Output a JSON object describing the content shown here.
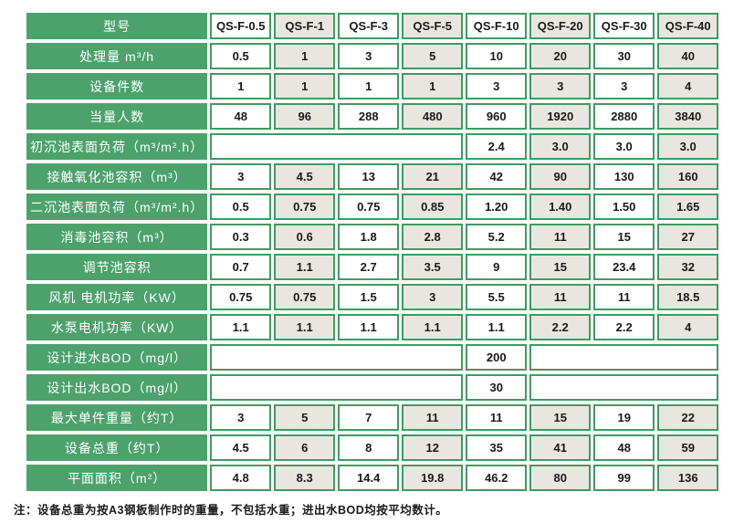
{
  "colors": {
    "label_green": "#4CA26B",
    "border_green": "#3F9B62",
    "alt_cell_gray": "#E8E6DF",
    "cell_white": "#FFFFFF",
    "label_text": "#FFFFFF",
    "data_text": "#1A1A1A"
  },
  "table": {
    "header": {
      "label": "型号",
      "models": [
        "QS-F-0.5",
        "QS-F-1",
        "QS-F-3",
        "QS-F-5",
        "QS-F-10",
        "QS-F-20",
        "QS-F-30",
        "QS-F-40"
      ]
    },
    "rows": [
      {
        "label": "处理量 m³/h",
        "cells": [
          {
            "v": "0.5"
          },
          {
            "v": "1"
          },
          {
            "v": "3"
          },
          {
            "v": "5"
          },
          {
            "v": "10"
          },
          {
            "v": "20"
          },
          {
            "v": "30"
          },
          {
            "v": "40"
          }
        ]
      },
      {
        "label": "设备件数",
        "cells": [
          {
            "v": "1"
          },
          {
            "v": "1"
          },
          {
            "v": "1"
          },
          {
            "v": "1"
          },
          {
            "v": "3"
          },
          {
            "v": "3"
          },
          {
            "v": "3"
          },
          {
            "v": "4"
          }
        ]
      },
      {
        "label": "当量人数",
        "cells": [
          {
            "v": "48"
          },
          {
            "v": "96"
          },
          {
            "v": "288"
          },
          {
            "v": "480"
          },
          {
            "v": "960"
          },
          {
            "v": "1920"
          },
          {
            "v": "2880"
          },
          {
            "v": "3840"
          }
        ]
      },
      {
        "label": "初沉池表面负荷（m³/m².h）",
        "cells": [
          {
            "v": "",
            "span": 4
          },
          {
            "v": "2.4"
          },
          {
            "v": "3.0"
          },
          {
            "v": "3.0"
          },
          {
            "v": "3.0"
          }
        ]
      },
      {
        "label": "接触氧化池容积（m³）",
        "cells": [
          {
            "v": "3"
          },
          {
            "v": "4.5"
          },
          {
            "v": "13"
          },
          {
            "v": "21"
          },
          {
            "v": "42"
          },
          {
            "v": "90"
          },
          {
            "v": "130"
          },
          {
            "v": "160"
          }
        ]
      },
      {
        "label": "二沉池表面负荷（m³/m².h）",
        "cells": [
          {
            "v": "0.5"
          },
          {
            "v": "0.75"
          },
          {
            "v": "0.75"
          },
          {
            "v": "0.85"
          },
          {
            "v": "1.20"
          },
          {
            "v": "1.40"
          },
          {
            "v": "1.50"
          },
          {
            "v": "1.65"
          }
        ]
      },
      {
        "label": "消毒池容积（m³）",
        "cells": [
          {
            "v": "0.3"
          },
          {
            "v": "0.6"
          },
          {
            "v": "1.8"
          },
          {
            "v": "2.8"
          },
          {
            "v": "5.2"
          },
          {
            "v": "11"
          },
          {
            "v": "15"
          },
          {
            "v": "27"
          }
        ]
      },
      {
        "label": "调节池容积",
        "cells": [
          {
            "v": "0.7"
          },
          {
            "v": "1.1"
          },
          {
            "v": "2.7"
          },
          {
            "v": "3.5"
          },
          {
            "v": "9"
          },
          {
            "v": "15"
          },
          {
            "v": "23.4"
          },
          {
            "v": "32"
          }
        ]
      },
      {
        "label": "风机 电机功率（KW）",
        "cells": [
          {
            "v": "0.75"
          },
          {
            "v": "0.75"
          },
          {
            "v": "1.5"
          },
          {
            "v": "3"
          },
          {
            "v": "5.5"
          },
          {
            "v": "11"
          },
          {
            "v": "11"
          },
          {
            "v": "18.5"
          }
        ]
      },
      {
        "label": "水泵电机功率（KW）",
        "cells": [
          {
            "v": "1.1"
          },
          {
            "v": "1.1"
          },
          {
            "v": "1.1"
          },
          {
            "v": "1.1"
          },
          {
            "v": "1.1"
          },
          {
            "v": "2.2"
          },
          {
            "v": "2.2"
          },
          {
            "v": "4"
          }
        ]
      },
      {
        "label": "设计进水BOD（mg/l）",
        "cells": [
          {
            "v": "",
            "span": 4
          },
          {
            "v": "200"
          },
          {
            "v": "",
            "span": 3
          }
        ]
      },
      {
        "label": "设计出水BOD（mg/l）",
        "cells": [
          {
            "v": "",
            "span": 4
          },
          {
            "v": "30"
          },
          {
            "v": "",
            "span": 3
          }
        ]
      },
      {
        "label": "最大单件重量（约T）",
        "cells": [
          {
            "v": "3"
          },
          {
            "v": "5"
          },
          {
            "v": "7"
          },
          {
            "v": "11"
          },
          {
            "v": "11"
          },
          {
            "v": "15"
          },
          {
            "v": "19"
          },
          {
            "v": "22"
          }
        ]
      },
      {
        "label": "设备总重（约T）",
        "cells": [
          {
            "v": "4.5"
          },
          {
            "v": "6"
          },
          {
            "v": "8"
          },
          {
            "v": "12"
          },
          {
            "v": "35"
          },
          {
            "v": "41"
          },
          {
            "v": "48"
          },
          {
            "v": "59"
          }
        ]
      },
      {
        "label": "平面面积（m²）",
        "cells": [
          {
            "v": "4.8"
          },
          {
            "v": "8.3"
          },
          {
            "v": "14.4"
          },
          {
            "v": "19.8"
          },
          {
            "v": "46.2"
          },
          {
            "v": "80"
          },
          {
            "v": "99"
          },
          {
            "v": "136"
          }
        ]
      }
    ]
  },
  "note": "注：设备总重为按A3钢板制作时的重量，不包括水重；进出水BOD均按平均数计。"
}
